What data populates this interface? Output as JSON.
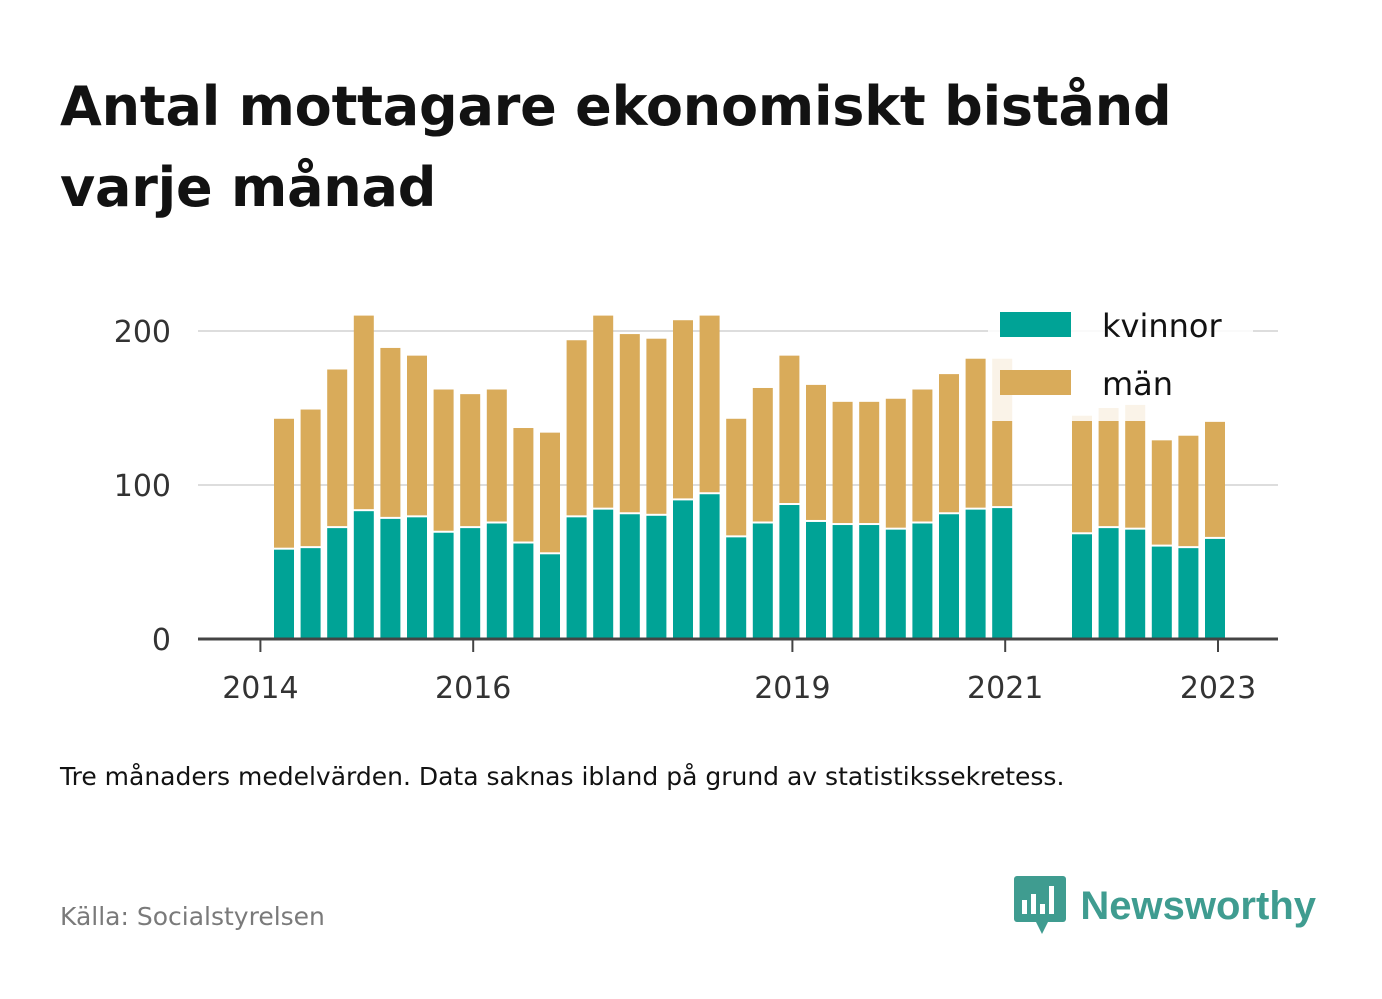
{
  "title": "Antal mottagare ekonomiskt bistånd varje månad",
  "note": "Tre månaders medelvärden. Data saknas ibland på grund av statistikssekretess.",
  "source": "Källa: Socialstyrelsen",
  "brand": {
    "name": "Newsworthy",
    "icon": "newsworthy-chart-bubble-icon"
  },
  "colors": {
    "kvinnor": "#00a396",
    "man": "#d9ab5a",
    "grid": "#dddddd",
    "axis": "#444444",
    "brand": "#3f9c90"
  },
  "chart_data": {
    "type": "bar",
    "stacked": true,
    "ylim": [
      0,
      220
    ],
    "yticks": [
      0,
      100,
      200
    ],
    "xticks": [
      "2014",
      "2016",
      "2019",
      "2021",
      "2023"
    ],
    "grid": true,
    "legend_position": "top-right",
    "series": [
      {
        "name": "kvinnor",
        "values": [
          58,
          59,
          72,
          83,
          78,
          79,
          69,
          72,
          75,
          62,
          55,
          79,
          84,
          81,
          80,
          90,
          94,
          66,
          75,
          87,
          76,
          74,
          74,
          71,
          75,
          81,
          84,
          85,
          null,
          null,
          68,
          72,
          71,
          60,
          59,
          65
        ]
      },
      {
        "name": "män",
        "values": [
          85,
          90,
          103,
          127,
          111,
          105,
          93,
          87,
          87,
          75,
          79,
          115,
          126,
          117,
          115,
          117,
          116,
          77,
          88,
          97,
          89,
          80,
          80,
          85,
          87,
          91,
          98,
          97,
          null,
          null,
          77,
          78,
          81,
          69,
          73,
          76
        ]
      }
    ]
  }
}
